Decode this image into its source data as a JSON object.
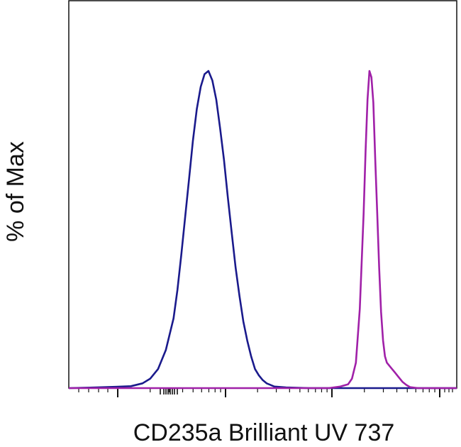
{
  "chart_data": {
    "type": "line",
    "title": "",
    "xlabel": "CD235a Brilliant UV 737",
    "ylabel": "% of Max",
    "x_scale": "log (biexponential)",
    "x_tick_labels_shown": false,
    "y_tick_labels_shown": false,
    "ylim": [
      0,
      100
    ],
    "grid": false,
    "legend": "none",
    "series": [
      {
        "color": "#1a1a8c",
        "points": [
          [
            0.0,
            0
          ],
          [
            0.07,
            0.2
          ],
          [
            0.12,
            0.4
          ],
          [
            0.16,
            0.6
          ],
          [
            0.19,
            1.5
          ],
          [
            0.21,
            3
          ],
          [
            0.23,
            6
          ],
          [
            0.25,
            12
          ],
          [
            0.27,
            22
          ],
          [
            0.28,
            31
          ],
          [
            0.29,
            42
          ],
          [
            0.3,
            54
          ],
          [
            0.31,
            66
          ],
          [
            0.32,
            78
          ],
          [
            0.33,
            88
          ],
          [
            0.34,
            95
          ],
          [
            0.35,
            99
          ],
          [
            0.36,
            100
          ],
          [
            0.37,
            97
          ],
          [
            0.38,
            91
          ],
          [
            0.39,
            82
          ],
          [
            0.4,
            72
          ],
          [
            0.41,
            60
          ],
          [
            0.42,
            49
          ],
          [
            0.43,
            38
          ],
          [
            0.44,
            29
          ],
          [
            0.45,
            21
          ],
          [
            0.46,
            15
          ],
          [
            0.47,
            10
          ],
          [
            0.48,
            6
          ],
          [
            0.49,
            4
          ],
          [
            0.5,
            2.5
          ],
          [
            0.51,
            1.5
          ],
          [
            0.53,
            0.5
          ],
          [
            0.56,
            0.2
          ],
          [
            0.62,
            0
          ],
          [
            1.0,
            0
          ]
        ]
      },
      {
        "color": "#a020a8",
        "points": [
          [
            0.0,
            0
          ],
          [
            0.61,
            0
          ],
          [
            0.67,
            0
          ],
          [
            0.7,
            0.5
          ],
          [
            0.72,
            1.2
          ],
          [
            0.73,
            3
          ],
          [
            0.74,
            8
          ],
          [
            0.75,
            25
          ],
          [
            0.76,
            55
          ],
          [
            0.765,
            75
          ],
          [
            0.77,
            91
          ],
          [
            0.775,
            100
          ],
          [
            0.78,
            98
          ],
          [
            0.785,
            90
          ],
          [
            0.79,
            72
          ],
          [
            0.795,
            55
          ],
          [
            0.8,
            38
          ],
          [
            0.805,
            24
          ],
          [
            0.81,
            15
          ],
          [
            0.815,
            10
          ],
          [
            0.82,
            8
          ],
          [
            0.83,
            6.5
          ],
          [
            0.84,
            5
          ],
          [
            0.85,
            3.5
          ],
          [
            0.86,
            2
          ],
          [
            0.87,
            1
          ],
          [
            0.88,
            0.3
          ],
          [
            0.9,
            0
          ],
          [
            1.0,
            0
          ]
        ]
      }
    ]
  }
}
